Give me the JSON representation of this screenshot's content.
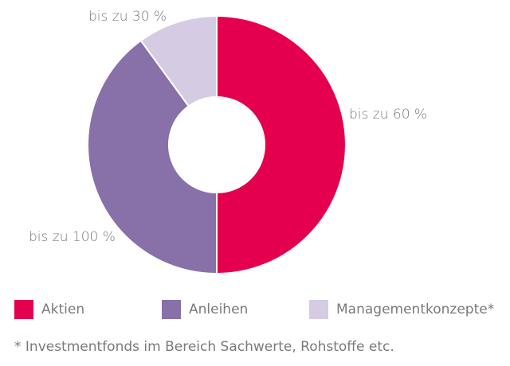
{
  "chart_data": {
    "type": "pie",
    "subtype": "donut",
    "title": "",
    "slices": [
      {
        "name": "Aktien",
        "value": 50,
        "label": "bis zu 60 %",
        "color": "#e4004f"
      },
      {
        "name": "Anleihen",
        "value": 40,
        "label": "bis zu 100 %",
        "color": "#8870a8"
      },
      {
        "name": "Managementkonzepte*",
        "value": 10,
        "label": "bis zu 30 %",
        "color": "#d5cce3"
      }
    ],
    "legend_position": "bottom",
    "footnote": "* Investmentfonds im Bereich Sachwerte, Rohstoffe etc."
  }
}
